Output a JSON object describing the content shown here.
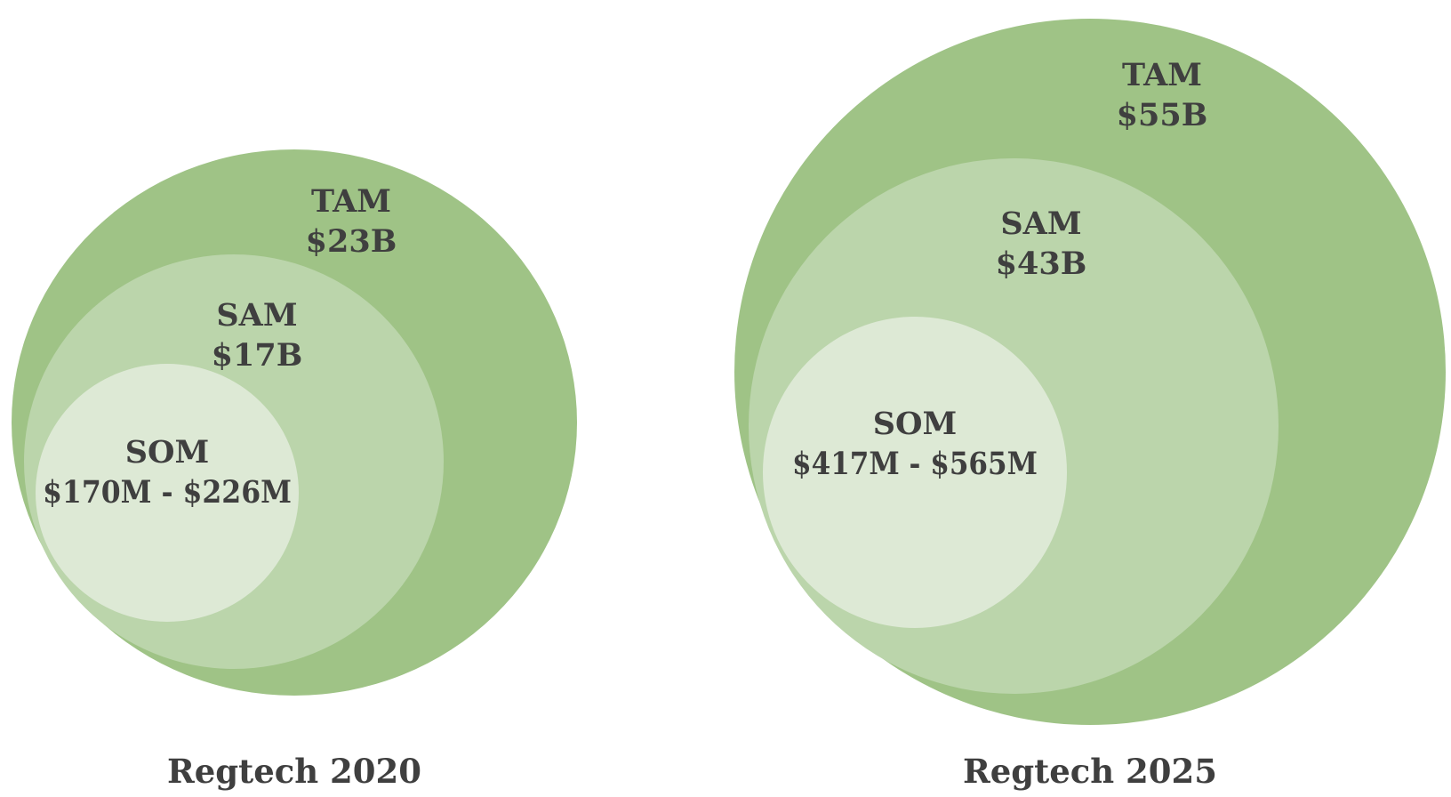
{
  "colors": {
    "tam": "#9fc386",
    "sam": "#bbd5ab",
    "som": "#dde9d5",
    "text": "#3f3f3f",
    "background": "#ffffff"
  },
  "charts": [
    {
      "caption": "Regtech 2020",
      "tam": {
        "label": "TAM",
        "value": "$23B"
      },
      "sam": {
        "label": "SAM",
        "value": "$17B"
      },
      "som": {
        "label": "SOM",
        "value": "$170M - $226M"
      }
    },
    {
      "caption": "Regtech 2025",
      "tam": {
        "label": "TAM",
        "value": "$55B"
      },
      "sam": {
        "label": "SAM",
        "value": "$43B"
      },
      "som": {
        "label": "SOM",
        "value": "$417M - $565M"
      }
    }
  ]
}
